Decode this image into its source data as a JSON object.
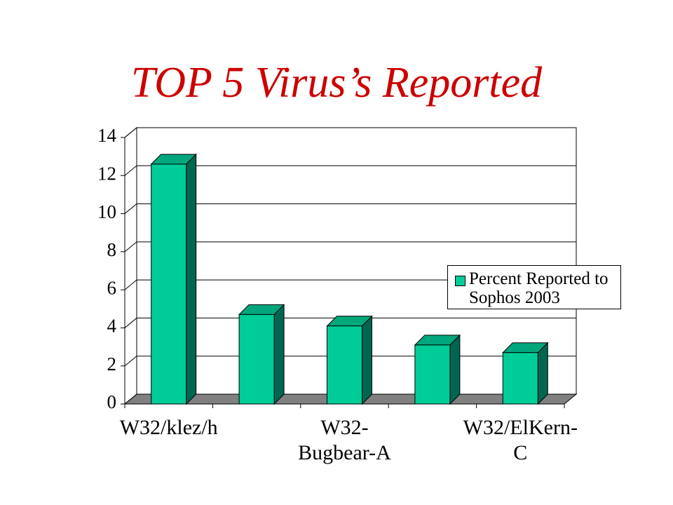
{
  "chart_data": {
    "type": "bar3d",
    "title": "TOP 5 Virus’s Reported",
    "categories": [
      "W32/klez/h",
      null,
      "W32-Bugbear-A",
      null,
      "W32/ElKern-C"
    ],
    "series": [
      {
        "name": "Percent Reported to Sophos 2003",
        "color": "#00cc99",
        "values": [
          12.6,
          4.7,
          4.1,
          3.1,
          2.7
        ]
      }
    ],
    "ylim": [
      0,
      14
    ],
    "yticks": [
      0,
      2,
      4,
      6,
      8,
      10,
      12,
      14
    ],
    "grid": true,
    "legend": "right"
  }
}
